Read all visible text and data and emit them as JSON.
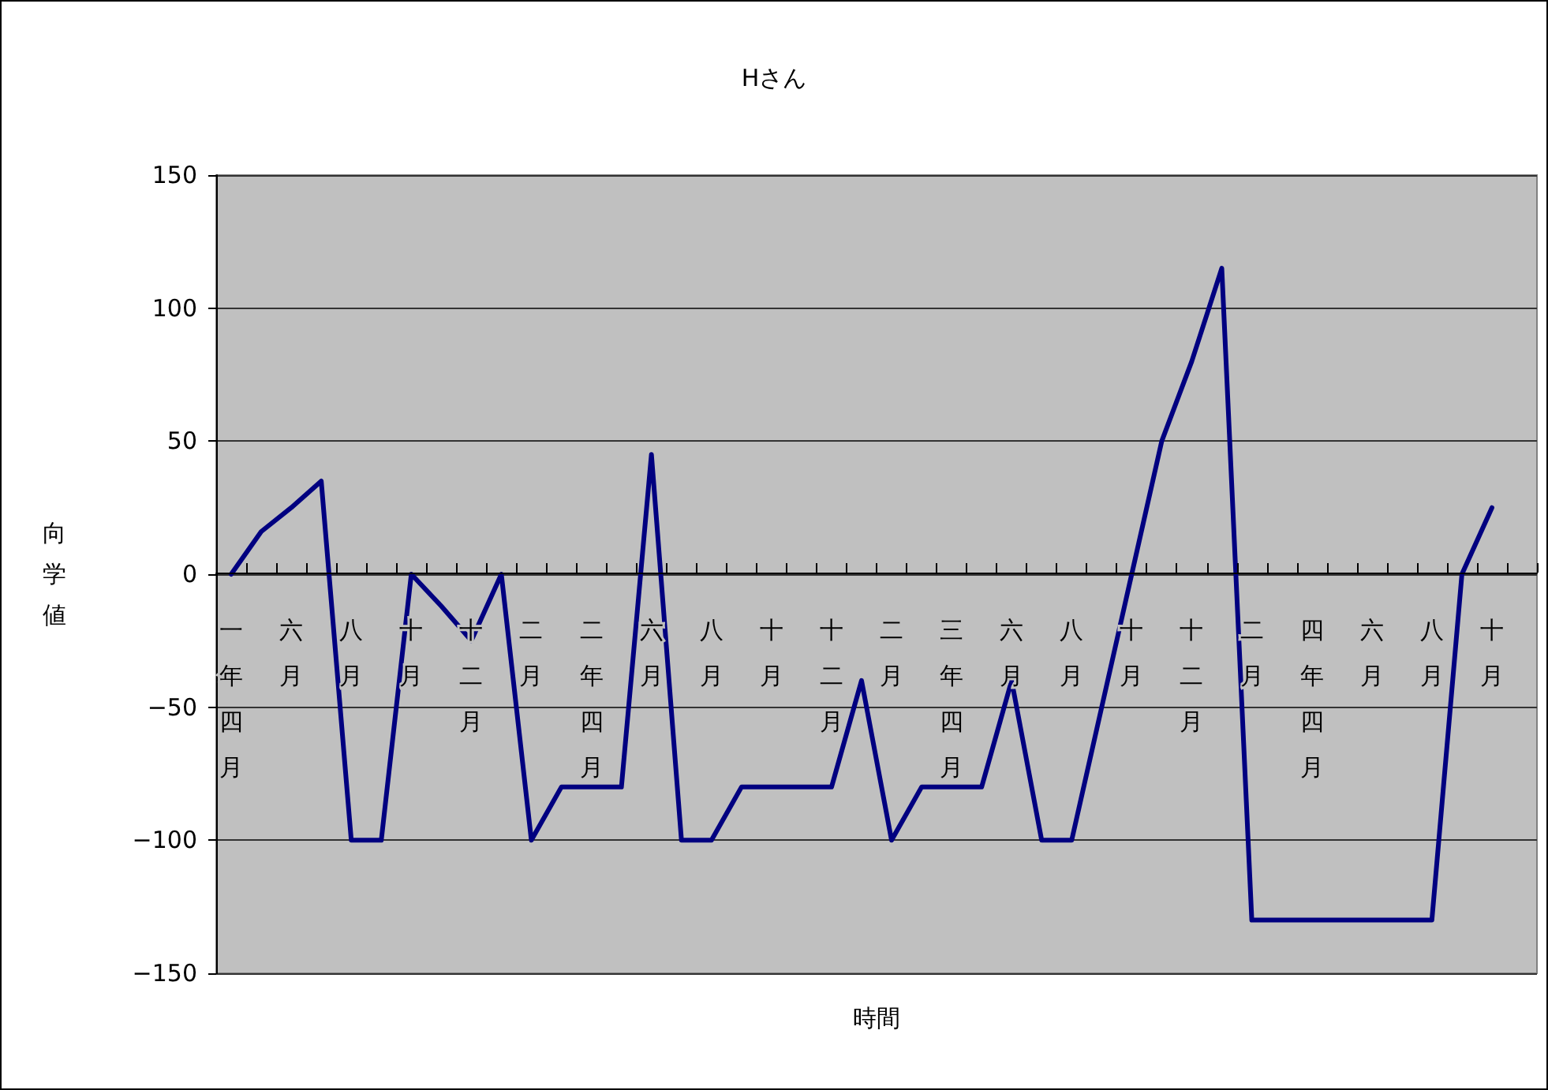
{
  "chart_data": {
    "type": "line",
    "title": "Hさん",
    "xlabel": "時間",
    "ylabel": "向学値",
    "categories": [
      "一年四月",
      null,
      "六月",
      null,
      "八月",
      null,
      "十月",
      null,
      "十二月",
      null,
      "二月",
      null,
      "二年四月",
      null,
      "六月",
      null,
      "八月",
      null,
      "十月",
      null,
      "十二月",
      null,
      "二月",
      null,
      "三年四月",
      null,
      "六月",
      null,
      "八月",
      null,
      "十月",
      null,
      "十二月",
      null,
      "二月",
      null,
      "四年四月",
      null,
      "六月",
      null,
      "八月",
      null,
      "十月",
      null
    ],
    "series": [
      {
        "color": "#000080",
        "values": [
          0,
          16,
          25,
          35,
          -100,
          -100,
          0,
          -12,
          -25,
          0,
          -100,
          -80,
          -80,
          -80,
          45,
          -100,
          -100,
          -80,
          -80,
          -80,
          -80,
          -40,
          -100,
          -80,
          -80,
          -80,
          -40,
          -100,
          -100,
          -50,
          0,
          50,
          80,
          115,
          -130,
          -130,
          -130,
          -130,
          -130,
          -130,
          -130,
          0,
          25,
          null
        ]
      }
    ],
    "ylim": [
      -150,
      150
    ],
    "yticks": [
      -150,
      -100,
      -50,
      0,
      50,
      100,
      150
    ],
    "grid": "y",
    "marker": "none",
    "line_style": "solid"
  }
}
